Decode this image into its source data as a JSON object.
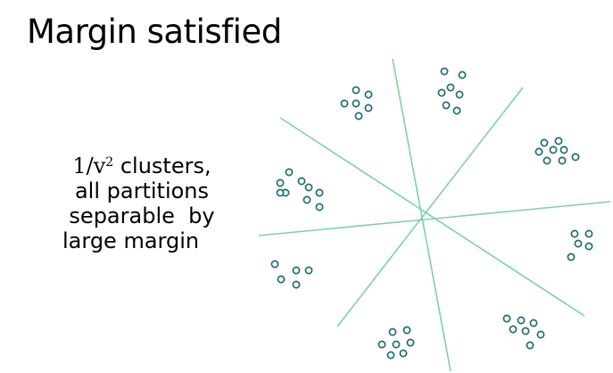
{
  "title": "Margin satisfied",
  "caption": {
    "line1_prefix": "1/",
    "line1_var": "v",
    "line1_exp": "2",
    "line1_suffix": " clusters,",
    "line2": "all partitions",
    "line3": "separable  by",
    "line4": "large margin"
  },
  "colors": {
    "partition_line": "#7fd1a8",
    "point_stroke": "#1f6e6e",
    "point_fill": "#ffffff",
    "text": "#000000"
  }
}
